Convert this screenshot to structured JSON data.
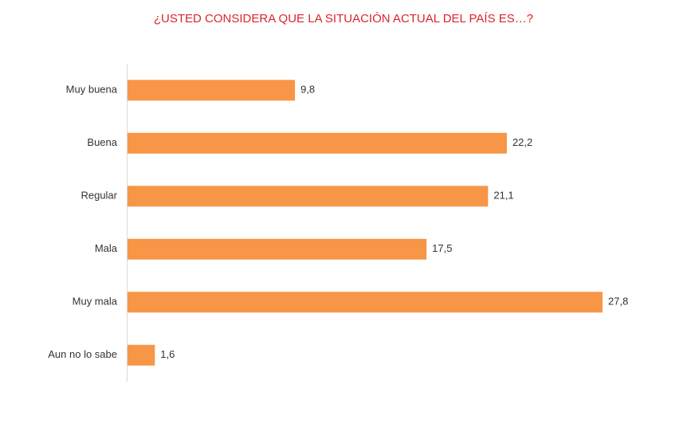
{
  "chart_data": {
    "type": "bar",
    "orientation": "horizontal",
    "title": "¿USTED CONSIDERA QUE LA SITUACIÓN ACTUAL DEL PAÍS ES…?",
    "categories": [
      "Muy buena",
      "Buena",
      "Regular",
      "Mala",
      "Muy mala",
      "Aun no lo sabe"
    ],
    "values": [
      9.8,
      22.2,
      21.1,
      17.5,
      27.8,
      1.6
    ],
    "value_labels": [
      "9,8",
      "22,2",
      "21,1",
      "17,5",
      "27,8",
      "1,6"
    ],
    "color": "#f79646"
  }
}
